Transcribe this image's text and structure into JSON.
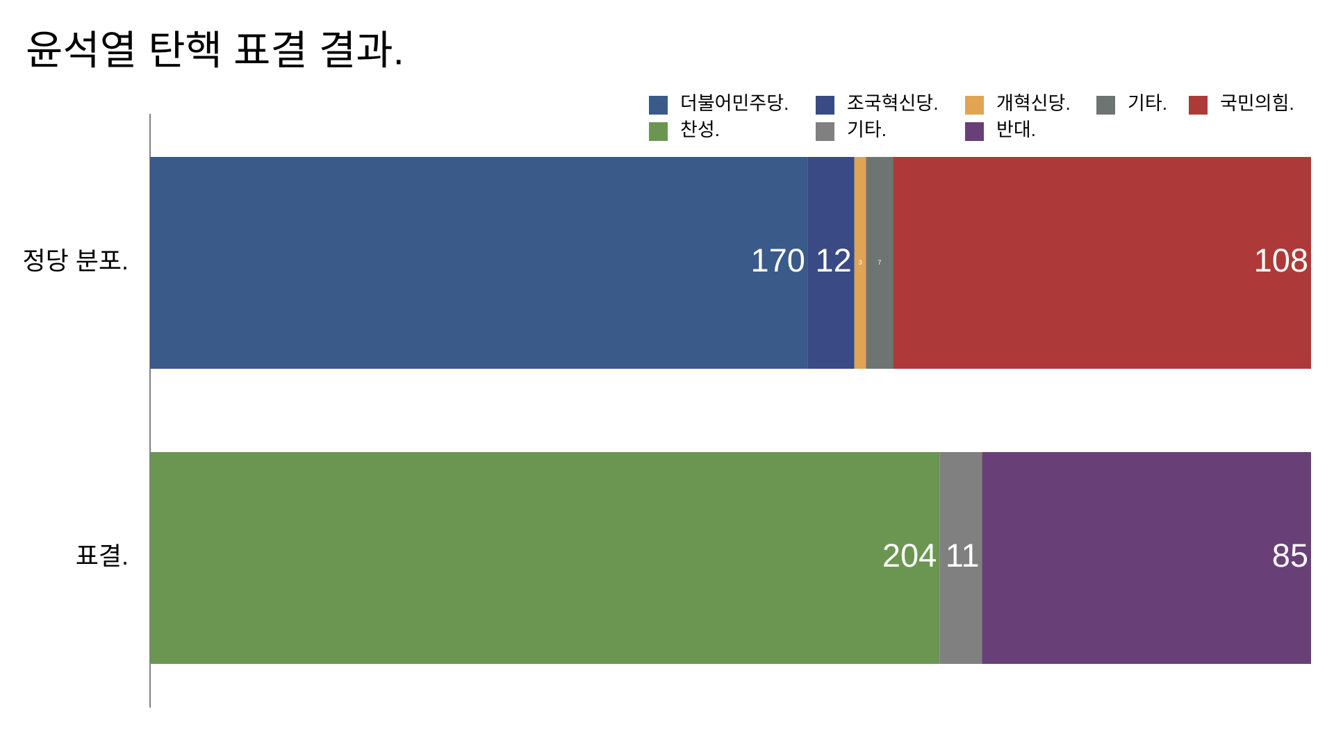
{
  "chart_data": {
    "type": "stacked-bar",
    "orientation": "horizontal",
    "title": "윤석열 탄핵 표결 결과.",
    "categories": [
      "정당 분포.",
      "표결."
    ],
    "xlim": [
      0,
      300
    ],
    "series": [
      {
        "name": "더불어민주당.",
        "color": "#3a5a89",
        "values": [
          170,
          null
        ]
      },
      {
        "name": "조국혁신당.",
        "color": "#394a84",
        "values": [
          12,
          null
        ]
      },
      {
        "name": "개혁신당.",
        "color": "#e0a452",
        "values": [
          3,
          null
        ]
      },
      {
        "name": "기타.",
        "color": "#6e7472",
        "values": [
          7,
          null
        ]
      },
      {
        "name": "국민의힘.",
        "color": "#ad3a38",
        "values": [
          108,
          null
        ]
      },
      {
        "name": "찬성.",
        "color": "#6b9652",
        "values": [
          null,
          204
        ]
      },
      {
        "name": "기타.",
        "color": "#808080",
        "values": [
          null,
          11
        ]
      },
      {
        "name": "반대.",
        "color": "#683f76",
        "values": [
          null,
          85
        ]
      }
    ]
  }
}
